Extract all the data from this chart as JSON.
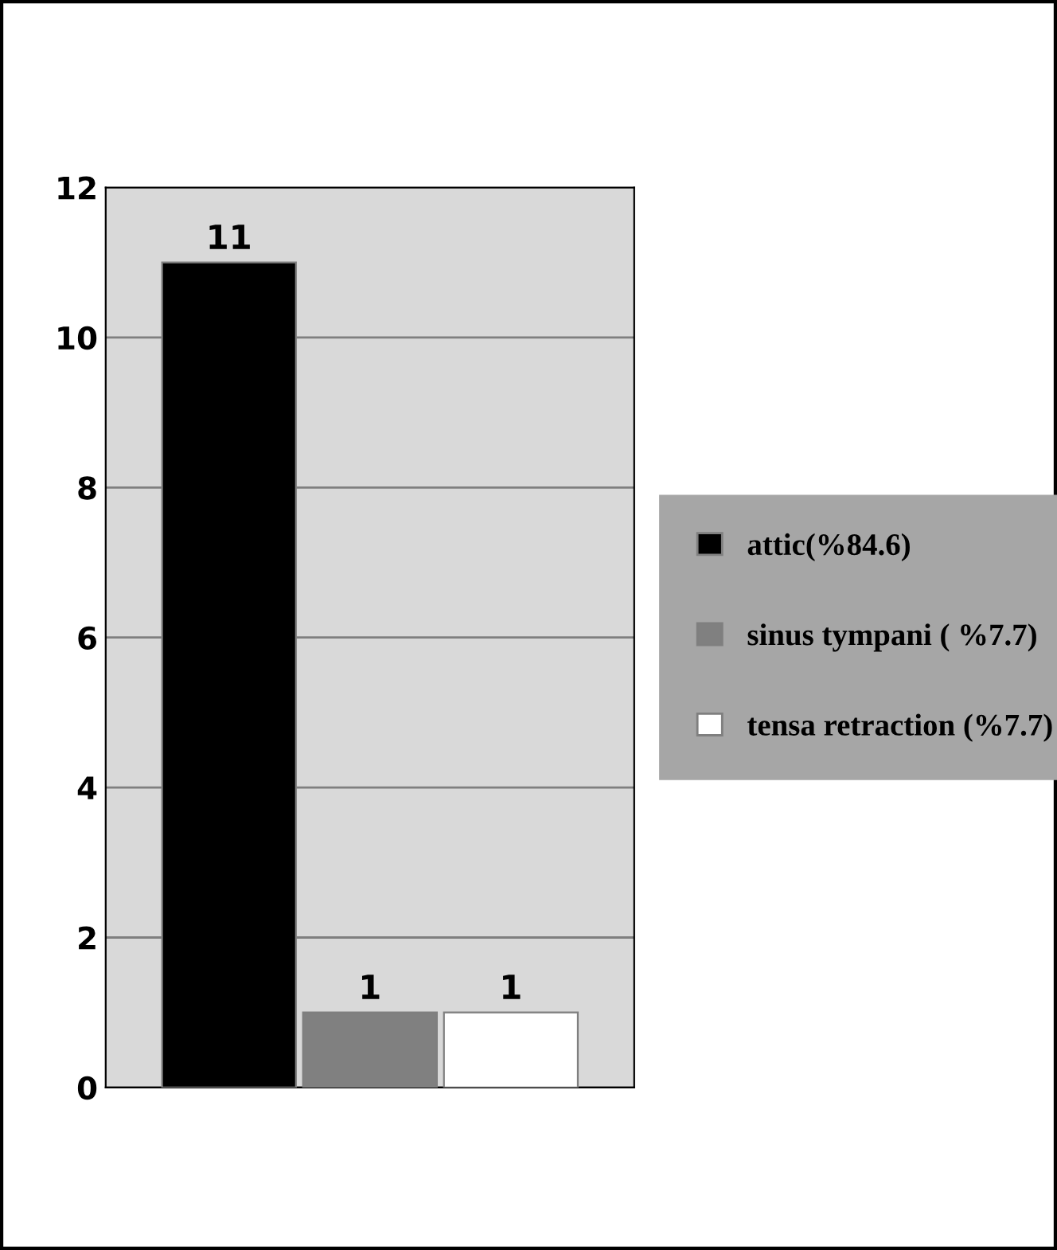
{
  "chart_data": {
    "type": "bar",
    "categories": [
      null
    ],
    "series": [
      {
        "name": "attic(%84.6)",
        "color": "#000000",
        "values": [
          11
        ]
      },
      {
        "name": "sinus tympani ( %7.7)",
        "color": "#808080",
        "values": [
          1
        ]
      },
      {
        "name": "tensa retraction (%7.7)",
        "color": "#ffffff",
        "values": [
          1
        ]
      }
    ],
    "ylim": [
      0,
      12
    ],
    "yticks": [
      0,
      2,
      4,
      6,
      8,
      10,
      12
    ],
    "grid": "y",
    "legend": "right",
    "data_labels": true
  }
}
